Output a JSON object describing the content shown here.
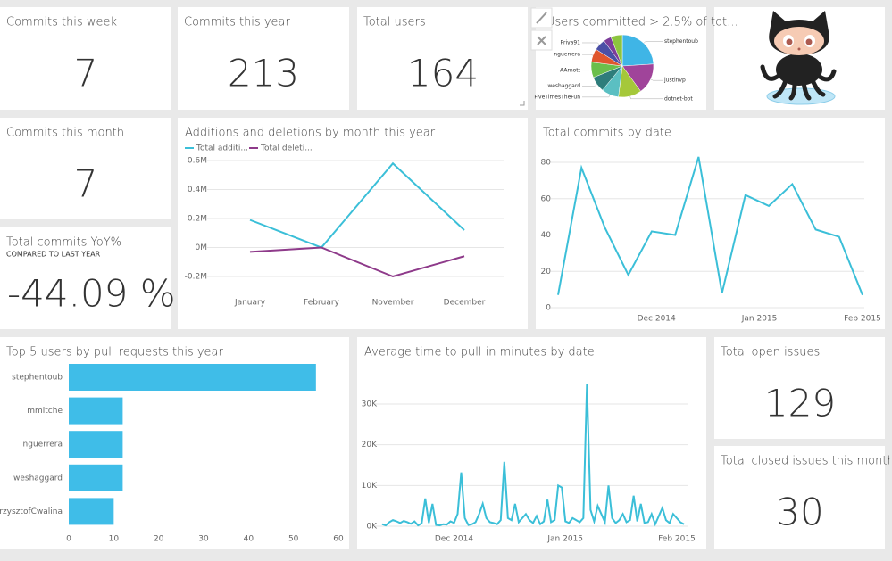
{
  "cards": [
    {
      "title": "Commits this week",
      "value": 7
    },
    {
      "title": "Commits this year",
      "value": 213
    },
    {
      "title": "Total users",
      "value": 164
    },
    {
      "title": "Commits this month",
      "value": 7
    },
    {
      "title": "Total commits YoY%",
      "subtitle": "COMPARED TO LAST YEAR",
      "value": "-44.09 %"
    },
    {
      "title": "Total open issues",
      "value": 129
    },
    {
      "title": "Total closed issues this month",
      "value": 30
    }
  ],
  "chart_data": [
    {
      "type": "pie",
      "title": "Users committed > 2.5% of tot...",
      "categories": [
        "stephentoub",
        "justinvp",
        "dotnet-bot",
        "FiveTimesTheFun",
        "weshaggard",
        "AArnott",
        "nguerrera",
        "Priya91",
        null,
        null
      ],
      "values": [
        24,
        16,
        12,
        9,
        8,
        8,
        7,
        6,
        4,
        6
      ],
      "colors": [
        "#3fb5e6",
        "#a0449a",
        "#a5c83a",
        "#5bbfc2",
        "#2e7d7b",
        "#6bbf4b",
        "#e0562e",
        "#4a4fa6",
        "#7c3d9a",
        "#8cc43e"
      ]
    },
    {
      "type": "line",
      "title": "Additions and deletions by month this year",
      "categories": [
        "January",
        "February",
        "November",
        "December"
      ],
      "series": [
        {
          "name": "Total additi...",
          "color": "#3bbfd8",
          "values": [
            190000,
            0,
            580000,
            120000
          ]
        },
        {
          "name": "Total deleti...",
          "color": "#8e3a8a",
          "values": [
            -30000,
            0,
            -200000,
            -60000
          ]
        }
      ],
      "ylim": [
        -200000,
        600000
      ],
      "yticks": [
        {
          "value": -200000,
          "label": "-0.2M"
        },
        {
          "value": 0,
          "label": "0M"
        },
        {
          "value": 200000,
          "label": "0.2M"
        },
        {
          "value": 400000,
          "label": "0.4M"
        },
        {
          "value": 600000,
          "label": "0.6M"
        }
      ],
      "grid": true,
      "legend": "top-left"
    },
    {
      "type": "line",
      "title": "Total commits by date",
      "x": [
        0,
        1,
        2,
        3,
        4,
        5,
        6,
        7,
        8,
        9,
        10,
        11,
        12,
        13
      ],
      "values": [
        7,
        77,
        44,
        18,
        42,
        40,
        83,
        8,
        62,
        56,
        68,
        43,
        39,
        7
      ],
      "color": "#3bbfd8",
      "xlim": [
        0,
        13
      ],
      "xticks": [
        {
          "value": 4.2,
          "label": "Dec 2014"
        },
        {
          "value": 8.6,
          "label": "Jan 2015"
        },
        {
          "value": 13,
          "label": "Feb 2015"
        }
      ],
      "ylim": [
        0,
        80
      ],
      "yticks": [
        0,
        20,
        40,
        60,
        80
      ],
      "grid": true
    },
    {
      "type": "hbar",
      "title": "Top 5 users by pull requests this year",
      "categories": [
        "stephentoub",
        "mmitche",
        "nguerrera",
        "weshaggard",
        "KrzysztofCwalina"
      ],
      "values": [
        55,
        12,
        12,
        12,
        10
      ],
      "color": "#3fbde8",
      "xlim": [
        0,
        60
      ],
      "xticks": [
        0,
        10,
        20,
        30,
        40,
        50,
        60
      ]
    },
    {
      "type": "line",
      "title": "Average time to pull in minutes by date",
      "x": [
        0,
        1,
        2,
        3,
        4,
        5,
        6,
        7,
        8,
        9,
        10,
        11,
        12,
        13,
        14,
        15,
        16,
        17,
        18,
        19,
        20,
        21,
        22,
        23,
        24,
        25,
        26,
        27,
        28,
        29,
        30,
        31,
        32,
        33,
        34,
        35,
        36,
        37,
        38,
        39,
        40,
        41,
        42,
        43,
        44,
        45,
        46,
        47,
        48,
        49,
        50,
        51,
        52,
        53,
        54,
        55,
        56,
        57,
        58,
        59,
        60,
        61,
        62,
        63,
        64,
        65,
        66,
        67,
        68,
        69,
        70,
        71,
        72,
        73,
        74,
        75,
        76,
        77,
        78,
        79,
        80,
        81,
        82,
        83,
        84
      ],
      "values": [
        500,
        200,
        1000,
        1500,
        1200,
        800,
        1300,
        1000,
        600,
        1200,
        200,
        700,
        6800,
        800,
        5500,
        300,
        200,
        500,
        400,
        1200,
        800,
        3000,
        13200,
        2000,
        300,
        500,
        1000,
        3000,
        5500,
        2000,
        1000,
        800,
        500,
        1500,
        15800,
        2000,
        1500,
        5500,
        1000,
        2000,
        3000,
        1500,
        800,
        2500,
        500,
        1200,
        6500,
        1000,
        1500,
        10000,
        9500,
        1200,
        800,
        2000,
        1500,
        1000,
        2000,
        35000,
        4000,
        1200,
        5000,
        3000,
        1000,
        10000,
        2000,
        800,
        1500,
        3000,
        1000,
        1500,
        7500,
        1200,
        5500,
        800,
        1000,
        3000,
        500,
        2500,
        4500,
        1500,
        800,
        3000,
        2000,
        1000,
        500
      ],
      "color": "#3bbfd8",
      "xlim": [
        0,
        84
      ],
      "xticks": [
        {
          "value": 20,
          "label": "Dec 2014"
        },
        {
          "value": 51,
          "label": "Jan 2015"
        },
        {
          "value": 82,
          "label": "Feb 2015"
        }
      ],
      "ylim": [
        0,
        30000
      ],
      "yticks": [
        {
          "value": 0,
          "label": "0K"
        },
        {
          "value": 10000,
          "label": "10K"
        },
        {
          "value": 20000,
          "label": "20K"
        },
        {
          "value": 30000,
          "label": "30K"
        }
      ],
      "grid": true
    }
  ]
}
